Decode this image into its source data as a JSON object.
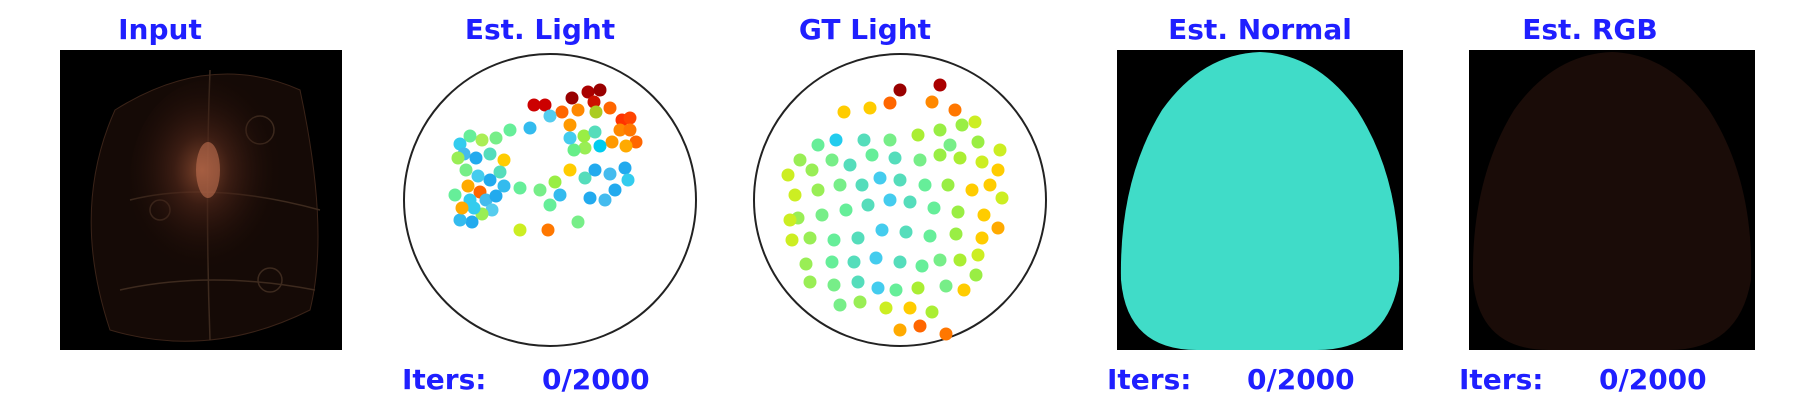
{
  "panels": {
    "input": {
      "title": "Input"
    },
    "est_light": {
      "title": "Est. Light",
      "iters_label": "Iters:",
      "iters_value": "0/2000"
    },
    "gt_light": {
      "title": "GT Light"
    },
    "est_normal": {
      "title": "Est. Normal",
      "iters_label": "Iters:",
      "iters_value": "0/2000"
    },
    "est_rgb": {
      "title": "Est. RGB",
      "iters_label": "Iters:",
      "iters_value": "0/2000"
    }
  },
  "colors": {
    "title_text": "#1f1fff",
    "normal_fill": "#40dcc8",
    "circle_stroke": "#222222",
    "image_bg": "#000000"
  }
}
